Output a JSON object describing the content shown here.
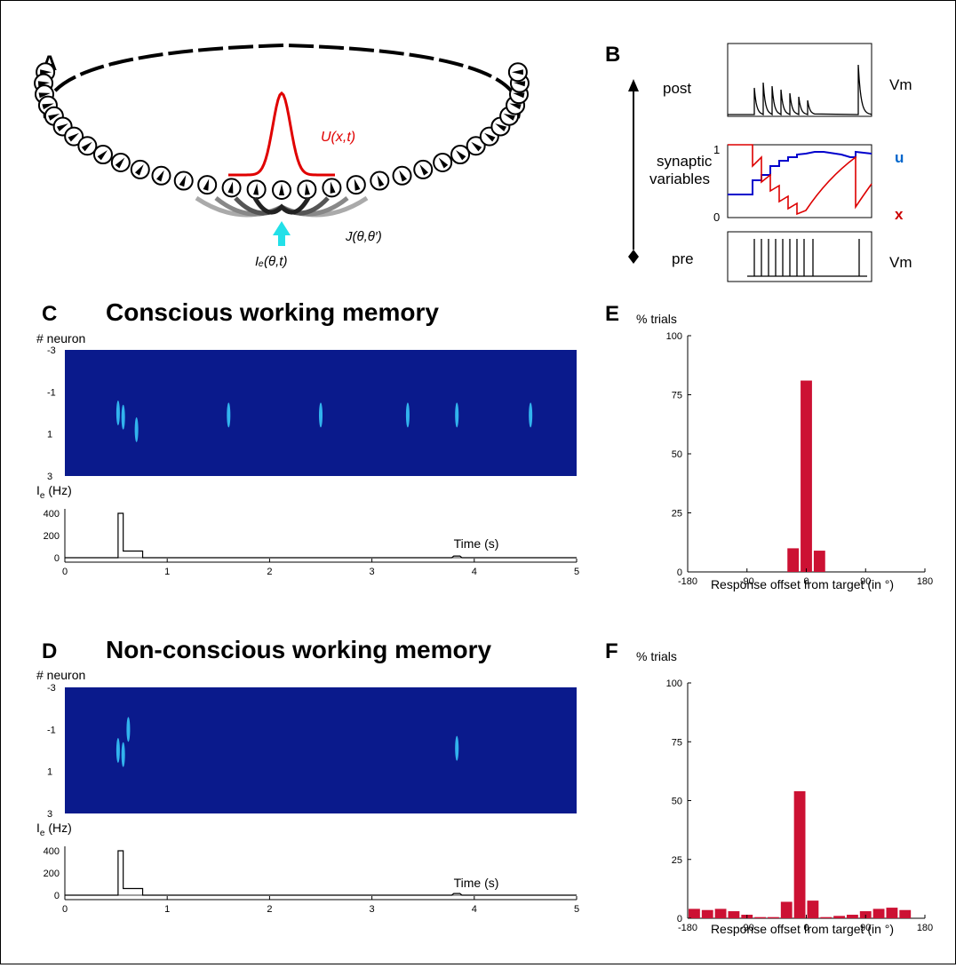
{
  "panels": {
    "A": {
      "letter": "A",
      "u_label": "U(x,t)",
      "j_label": "J(θ,θ′)",
      "ie_label": "Iₑ(θ,t)"
    },
    "B": {
      "letter": "B",
      "post": "post",
      "pre": "pre",
      "synaptic": "synaptic",
      "variables": "variables",
      "vm_top": "Vm",
      "vm_bot": "Vm",
      "u": "u",
      "x": "x",
      "tick_1": "1",
      "tick_0": "0",
      "colors": {
        "u": "#0000cc",
        "x": "#dd0000"
      }
    },
    "C": {
      "letter": "C",
      "title": "Conscious working memory",
      "neuron_label": "# neuron",
      "neuron_ticks": [
        "-3",
        "-1",
        "1",
        "3"
      ],
      "ie_label": "Ie (Hz)",
      "ie_ticks": [
        "400",
        "200",
        "0"
      ],
      "time_ticks": [
        "0",
        "1",
        "2",
        "3",
        "4",
        "5"
      ],
      "time_label": "Time (s)",
      "bumps": [
        {
          "t": 0.52,
          "n": 0.0
        },
        {
          "t": 0.57,
          "n": 0.2
        },
        {
          "t": 0.7,
          "n": 0.8
        },
        {
          "t": 1.6,
          "n": 0.1
        },
        {
          "t": 2.5,
          "n": 0.1
        },
        {
          "t": 3.35,
          "n": 0.1
        },
        {
          "t": 3.83,
          "n": 0.1
        },
        {
          "t": 4.55,
          "n": 0.1
        }
      ]
    },
    "D": {
      "letter": "D",
      "title": "Non-conscious working memory",
      "neuron_label": "# neuron",
      "neuron_ticks": [
        "-3",
        "-1",
        "1",
        "3"
      ],
      "ie_label": "Ie (Hz)",
      "ie_ticks": [
        "400",
        "200",
        "0"
      ],
      "time_ticks": [
        "0",
        "1",
        "2",
        "3",
        "4",
        "5"
      ],
      "time_label": "Time (s)",
      "bumps": [
        {
          "t": 0.52,
          "n": 0.0
        },
        {
          "t": 0.57,
          "n": 0.2
        },
        {
          "t": 0.62,
          "n": -1.0
        },
        {
          "t": 3.83,
          "n": -0.1
        }
      ]
    },
    "E": {
      "letter": "E",
      "ylabel": "% trials",
      "xlabel": "Response offset from target (in °)",
      "yticks": [
        "100",
        "75",
        "50",
        "25",
        "0"
      ],
      "xticks": [
        "-180",
        "-90",
        "0",
        "90",
        "180"
      ]
    },
    "F": {
      "letter": "F",
      "ylabel": "% trials",
      "xlabel": "Response offset from target (in °)",
      "yticks": [
        "100",
        "75",
        "50",
        "25",
        "0"
      ],
      "xticks": [
        "-180",
        "-90",
        "0",
        "90",
        "180"
      ]
    }
  },
  "chart_data": [
    {
      "type": "bar",
      "panel": "E",
      "xlabel": "Response offset from target (in °)",
      "ylabel": "% trials",
      "xlim": [
        -180,
        180
      ],
      "ylim": [
        0,
        100
      ],
      "bin_width": 20,
      "x": [
        -20,
        0,
        20
      ],
      "values": [
        10,
        81,
        9
      ]
    },
    {
      "type": "bar",
      "panel": "F",
      "xlabel": "Response offset from target (in °)",
      "ylabel": "% trials",
      "xlim": [
        -180,
        180
      ],
      "ylim": [
        0,
        100
      ],
      "bin_width": 20,
      "x": [
        -170,
        -150,
        -130,
        -110,
        -90,
        -70,
        -50,
        -30,
        -10,
        10,
        30,
        50,
        70,
        90,
        110,
        130,
        150,
        170
      ],
      "values": [
        4,
        3.5,
        4,
        3,
        1.5,
        0.5,
        0.5,
        7,
        54,
        7.5,
        0.5,
        1,
        1.5,
        3,
        4,
        4.5,
        3.5,
        0
      ]
    }
  ],
  "colors": {
    "bar": "#cc1133",
    "heatmap_bg": "#0a1a8c"
  }
}
